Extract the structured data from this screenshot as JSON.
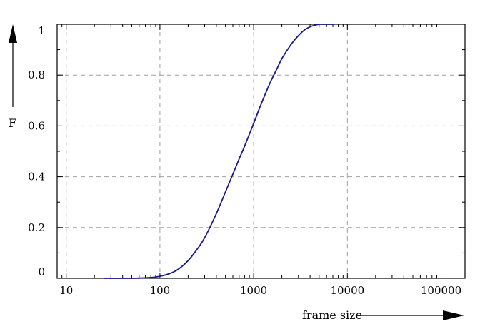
{
  "chart_data": {
    "type": "line",
    "title": "",
    "xlabel": "frame size",
    "ylabel": "F",
    "x_scale": "log",
    "xlim": [
      8,
      180000
    ],
    "ylim": [
      0,
      1
    ],
    "x_ticks": [
      10,
      100,
      1000,
      10000,
      100000
    ],
    "x_tick_labels": [
      "10",
      "100",
      "1000",
      "10000",
      "100000"
    ],
    "y_ticks": [
      0,
      0.2,
      0.4,
      0.6,
      0.8,
      1
    ],
    "y_tick_labels": [
      "0",
      "0.2",
      "0.4",
      "0.6",
      "0.8",
      "1"
    ],
    "grid": true,
    "colors": {
      "line": "#1a1a8c",
      "grid": "#a0a0a0",
      "axes": "#000000"
    },
    "series": [
      {
        "x": [
          25,
          50,
          80,
          100,
          130,
          160,
          200,
          250,
          300,
          400,
          500,
          600,
          700,
          800,
          1000,
          1200,
          1500,
          1800,
          2000,
          2500,
          3000,
          3500,
          4000,
          5000,
          6000,
          7000
        ],
        "y": [
          0,
          0,
          0.003,
          0.008,
          0.02,
          0.038,
          0.07,
          0.115,
          0.16,
          0.255,
          0.34,
          0.41,
          0.47,
          0.52,
          0.61,
          0.685,
          0.77,
          0.83,
          0.865,
          0.92,
          0.955,
          0.978,
          0.99,
          1.0,
          1.0,
          1.0
        ]
      }
    ]
  }
}
